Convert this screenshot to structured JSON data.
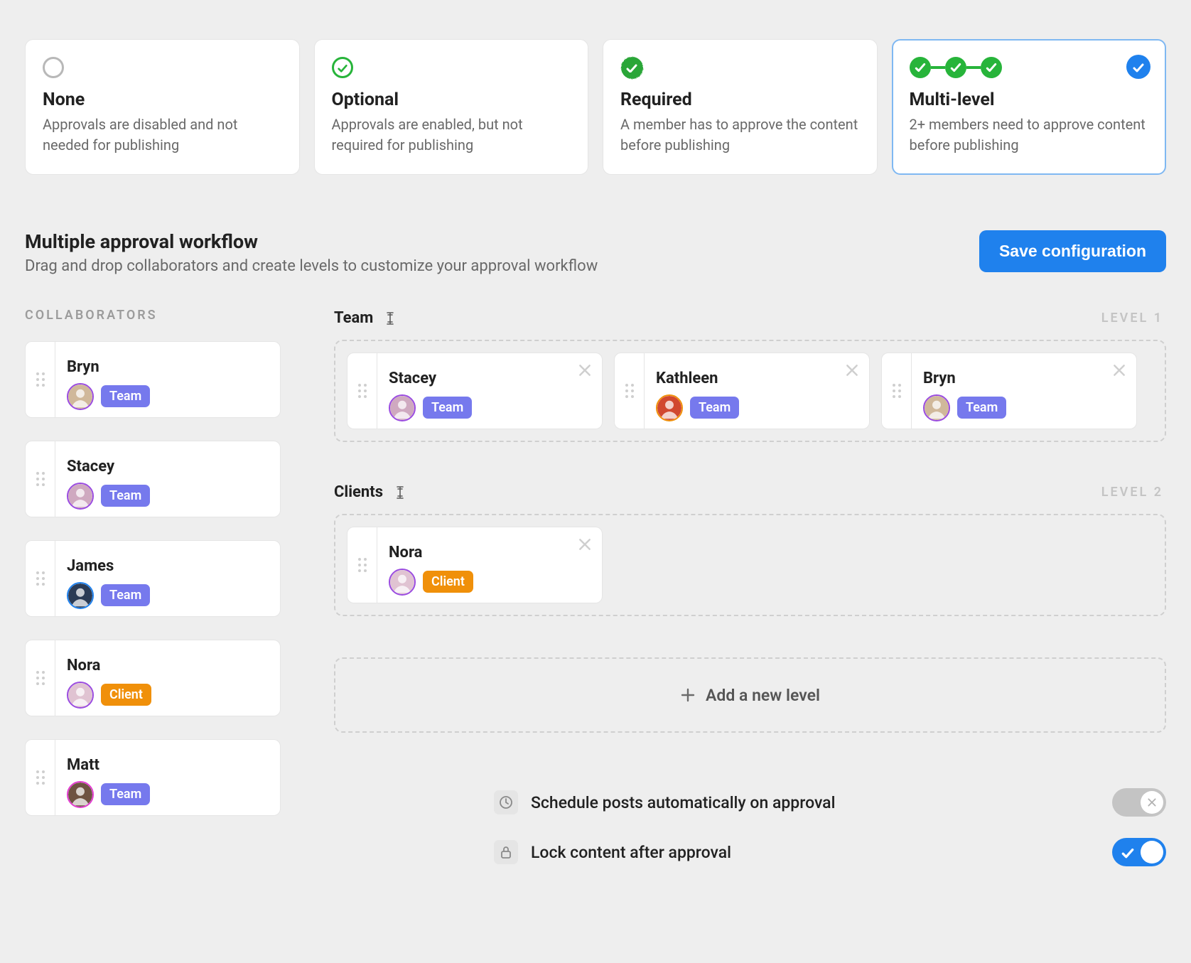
{
  "colors": {
    "background": "#eeeeee",
    "card_bg": "#ffffff",
    "blue": "#1f81ed",
    "blue_border": "#7fb8f2",
    "green": "#27b43a",
    "green_seal": "#2aa638",
    "badge_team": "#7679ed",
    "badge_client": "#f0900a",
    "text_muted": "#696969",
    "dashed_border": "#cfcfcf",
    "toggle_off": "#c4c4c4"
  },
  "options": [
    {
      "key": "none",
      "title": "None",
      "desc": "Approvals are disabled and not needed for publishing",
      "icon": "circle-empty",
      "selected": false
    },
    {
      "key": "optional",
      "title": "Optional",
      "desc": "Approvals are enabled, but not required for publishing",
      "icon": "circle-check",
      "selected": false
    },
    {
      "key": "required",
      "title": "Required",
      "desc": "A member has to approve the content before publishing",
      "icon": "seal-check",
      "selected": false
    },
    {
      "key": "multi",
      "title": "Multi-level",
      "desc": "2+ members need to approve content before publishing",
      "icon": "multi-chain",
      "selected": true
    }
  ],
  "section": {
    "title": "Multiple approval workflow",
    "subtitle": "Drag and drop collaborators and create levels to customize your approval workflow",
    "save_label": "Save configuration",
    "collaborators_heading": "COLLABORATORS",
    "add_level_label": "Add a new level"
  },
  "badges": {
    "team": {
      "label": "Team",
      "bg": "#7679ed"
    },
    "client": {
      "label": "Client",
      "bg": "#f0900a"
    }
  },
  "collaborators": [
    {
      "name": "Bryn",
      "badge": "team",
      "avatar_bg": "#d0b89a",
      "avatar_ring": "#9a4be0"
    },
    {
      "name": "Stacey",
      "badge": "team",
      "avatar_bg": "#cfa9c0",
      "avatar_ring": "#9a4be0"
    },
    {
      "name": "James",
      "badge": "team",
      "avatar_bg": "#2b3b55",
      "avatar_ring": "#1f81ed"
    },
    {
      "name": "Nora",
      "badge": "client",
      "avatar_bg": "#e0c3d2",
      "avatar_ring": "#9a4be0"
    },
    {
      "name": "Matt",
      "badge": "team",
      "avatar_bg": "#6e5242",
      "avatar_ring": "#e23bd0"
    }
  ],
  "levels": [
    {
      "name": "Team",
      "level_label": "LEVEL 1",
      "members": [
        {
          "name": "Stacey",
          "badge": "team",
          "avatar_bg": "#cfa9c0",
          "avatar_ring": "#9a4be0"
        },
        {
          "name": "Kathleen",
          "badge": "team",
          "avatar_bg": "#d1482f",
          "avatar_ring": "#f0900a"
        },
        {
          "name": "Bryn",
          "badge": "team",
          "avatar_bg": "#d0b89a",
          "avatar_ring": "#9a4be0"
        }
      ]
    },
    {
      "name": "Clients",
      "level_label": "LEVEL 2",
      "members": [
        {
          "name": "Nora",
          "badge": "client",
          "avatar_bg": "#e0c3d2",
          "avatar_ring": "#9a4be0"
        }
      ]
    }
  ],
  "settings": [
    {
      "icon": "clock",
      "label": "Schedule posts automatically on approval",
      "on": false
    },
    {
      "icon": "lock",
      "label": "Lock content after approval",
      "on": true
    }
  ]
}
